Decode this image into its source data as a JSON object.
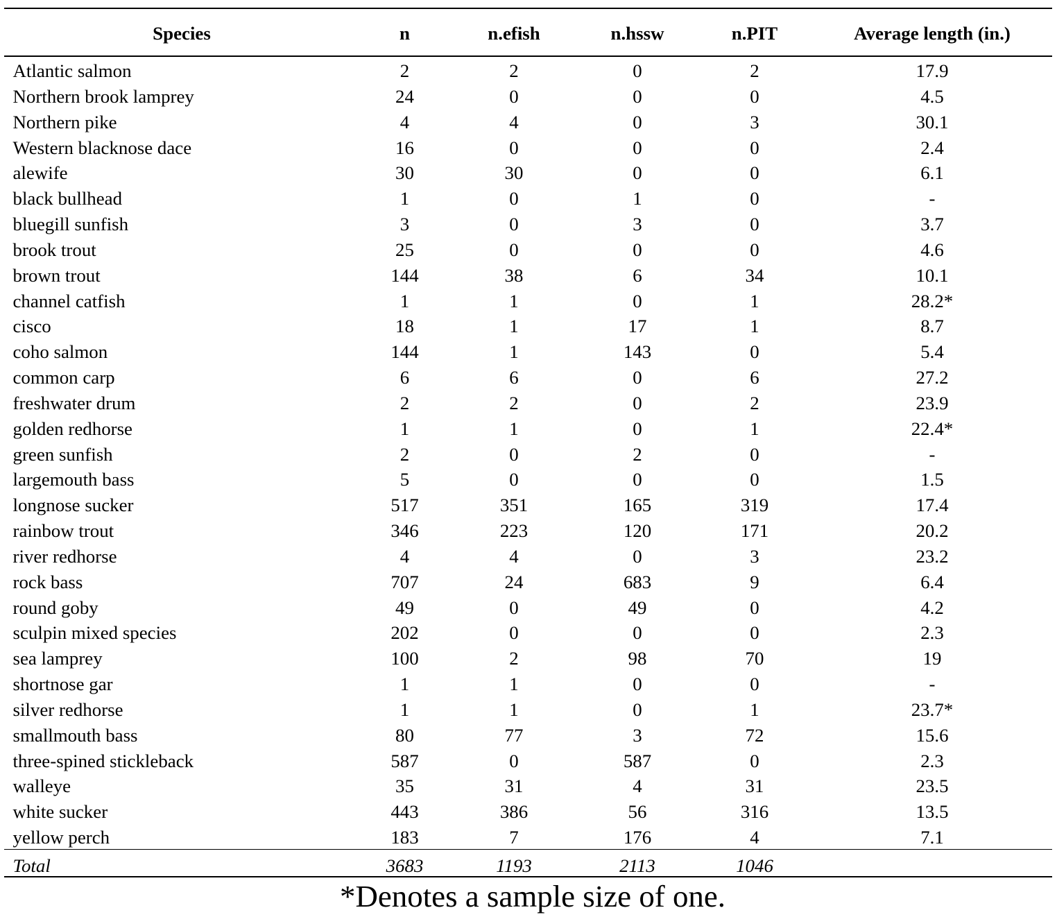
{
  "page": {
    "background_color": "#ffffff",
    "text_color": "#000000",
    "rule_color": "#000000"
  },
  "table": {
    "columns": [
      "Species",
      "n",
      "n.efish",
      "n.hssw",
      "n.PIT",
      "Average length (in.)"
    ],
    "rows": [
      [
        "Atlantic salmon",
        "2",
        "2",
        "0",
        "2",
        "17.9"
      ],
      [
        "Northern brook lamprey",
        "24",
        "0",
        "0",
        "0",
        "4.5"
      ],
      [
        "Northern pike",
        "4",
        "4",
        "0",
        "3",
        "30.1"
      ],
      [
        "Western blacknose dace",
        "16",
        "0",
        "0",
        "0",
        "2.4"
      ],
      [
        "alewife",
        "30",
        "30",
        "0",
        "0",
        "6.1"
      ],
      [
        "black bullhead",
        "1",
        "0",
        "1",
        "0",
        "-"
      ],
      [
        "bluegill sunfish",
        "3",
        "0",
        "3",
        "0",
        "3.7"
      ],
      [
        "brook trout",
        "25",
        "0",
        "0",
        "0",
        "4.6"
      ],
      [
        "brown trout",
        "144",
        "38",
        "6",
        "34",
        "10.1"
      ],
      [
        "channel catfish",
        "1",
        "1",
        "0",
        "1",
        "28.2*"
      ],
      [
        "cisco",
        "18",
        "1",
        "17",
        "1",
        "8.7"
      ],
      [
        "coho salmon",
        "144",
        "1",
        "143",
        "0",
        "5.4"
      ],
      [
        "common carp",
        "6",
        "6",
        "0",
        "6",
        "27.2"
      ],
      [
        "freshwater drum",
        "2",
        "2",
        "0",
        "2",
        "23.9"
      ],
      [
        "golden redhorse",
        "1",
        "1",
        "0",
        "1",
        "22.4*"
      ],
      [
        "green sunfish",
        "2",
        "0",
        "2",
        "0",
        "-"
      ],
      [
        "largemouth bass",
        "5",
        "0",
        "0",
        "0",
        "1.5"
      ],
      [
        "longnose sucker",
        "517",
        "351",
        "165",
        "319",
        "17.4"
      ],
      [
        "rainbow trout",
        "346",
        "223",
        "120",
        "171",
        "20.2"
      ],
      [
        "river redhorse",
        "4",
        "4",
        "0",
        "3",
        "23.2"
      ],
      [
        "rock bass",
        "707",
        "24",
        "683",
        "9",
        "6.4"
      ],
      [
        "round goby",
        "49",
        "0",
        "49",
        "0",
        "4.2"
      ],
      [
        "sculpin mixed species",
        "202",
        "0",
        "0",
        "0",
        "2.3"
      ],
      [
        "sea lamprey",
        "100",
        "2",
        "98",
        "70",
        "19"
      ],
      [
        "shortnose gar",
        "1",
        "1",
        "0",
        "0",
        "-"
      ],
      [
        "silver redhorse",
        "1",
        "1",
        "0",
        "1",
        "23.7*"
      ],
      [
        "smallmouth bass",
        "80",
        "77",
        "3",
        "72",
        "15.6"
      ],
      [
        "three-spined stickleback",
        "587",
        "0",
        "587",
        "0",
        "2.3"
      ],
      [
        "walleye",
        "35",
        "31",
        "4",
        "31",
        "23.5"
      ],
      [
        "white sucker",
        "443",
        "386",
        "56",
        "316",
        "13.5"
      ],
      [
        "yellow perch",
        "183",
        "7",
        "176",
        "4",
        "7.1"
      ]
    ],
    "total_row": [
      "Total",
      "3683",
      "1193",
      "2113",
      "1046",
      ""
    ]
  },
  "footnote": "*Denotes a sample size of one."
}
